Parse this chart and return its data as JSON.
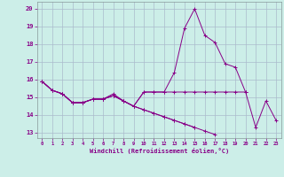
{
  "xlabel": "Windchill (Refroidissement éolien,°C)",
  "background_color": "#cceee8",
  "grid_color": "#aabbcc",
  "line_color": "#880088",
  "x_ticks": [
    0,
    1,
    2,
    3,
    4,
    5,
    6,
    7,
    8,
    9,
    10,
    11,
    12,
    13,
    14,
    15,
    16,
    17,
    18,
    19,
    20,
    21,
    22,
    23
  ],
  "y_ticks": [
    13,
    14,
    15,
    16,
    17,
    18,
    19,
    20
  ],
  "xlim": [
    -0.5,
    23.5
  ],
  "ylim": [
    12.7,
    20.4
  ],
  "series": [
    [
      15.9,
      15.4,
      15.2,
      14.7,
      14.7,
      14.9,
      14.9,
      15.1,
      14.8,
      14.5,
      15.3,
      15.3,
      15.3,
      16.4,
      18.9,
      20.0,
      18.5,
      18.1,
      16.9,
      16.7,
      15.3,
      13.3,
      14.8,
      13.7
    ],
    [
      15.9,
      15.4,
      15.2,
      14.7,
      14.7,
      14.9,
      14.9,
      15.2,
      14.8,
      14.5,
      15.3,
      15.3,
      15.3,
      15.3,
      15.3,
      15.3,
      15.3,
      15.3,
      15.3,
      15.3,
      15.3,
      null,
      null,
      null
    ],
    [
      15.9,
      15.4,
      15.2,
      14.7,
      14.7,
      14.9,
      14.9,
      15.1,
      14.8,
      14.5,
      14.3,
      14.1,
      13.9,
      13.7,
      13.5,
      13.3,
      13.1,
      12.9,
      null,
      null,
      null,
      null,
      null,
      null
    ],
    [
      15.9,
      15.4,
      15.2,
      14.7,
      14.7,
      14.9,
      14.9,
      15.1,
      14.8,
      14.5,
      14.3,
      14.1,
      13.9,
      13.7,
      13.5,
      13.3,
      null,
      null,
      null,
      null,
      null,
      null,
      null,
      null
    ]
  ]
}
